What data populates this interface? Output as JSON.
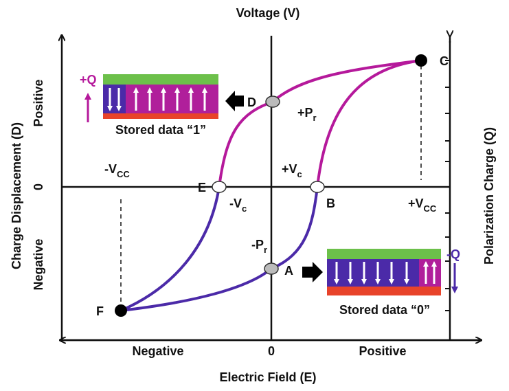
{
  "title": "Voltage (V)",
  "x_axis": {
    "label": "Electric Field (E)",
    "negative": "Negative",
    "zero": "0",
    "positive": "Positive"
  },
  "left_axis": {
    "label": "Charge Displacement (D)",
    "positive": "Positive",
    "zero": "0",
    "negative": "Negative"
  },
  "right_axis": {
    "label": "Polarization Charge (Q)"
  },
  "points": {
    "C": "C",
    "D": "D",
    "E": "E",
    "F": "F",
    "A": "A",
    "B": "B"
  },
  "annotations": {
    "plus_pr": {
      "main": "+P",
      "sub": "r"
    },
    "minus_pr": {
      "main": "-P",
      "sub": "r"
    },
    "plus_vc": {
      "main": "+V",
      "sub": "c"
    },
    "minus_vc": {
      "main": "-V",
      "sub": "c"
    },
    "minus_vcc": {
      "main": "-V",
      "sub": "CC"
    },
    "plus_vcc": {
      "main": "+V",
      "sub": "CC"
    }
  },
  "cells": {
    "one": {
      "charge": "+Q",
      "caption": "Stored data “1”"
    },
    "zero": {
      "charge": "-Q",
      "caption": "Stored data “0”"
    }
  }
}
